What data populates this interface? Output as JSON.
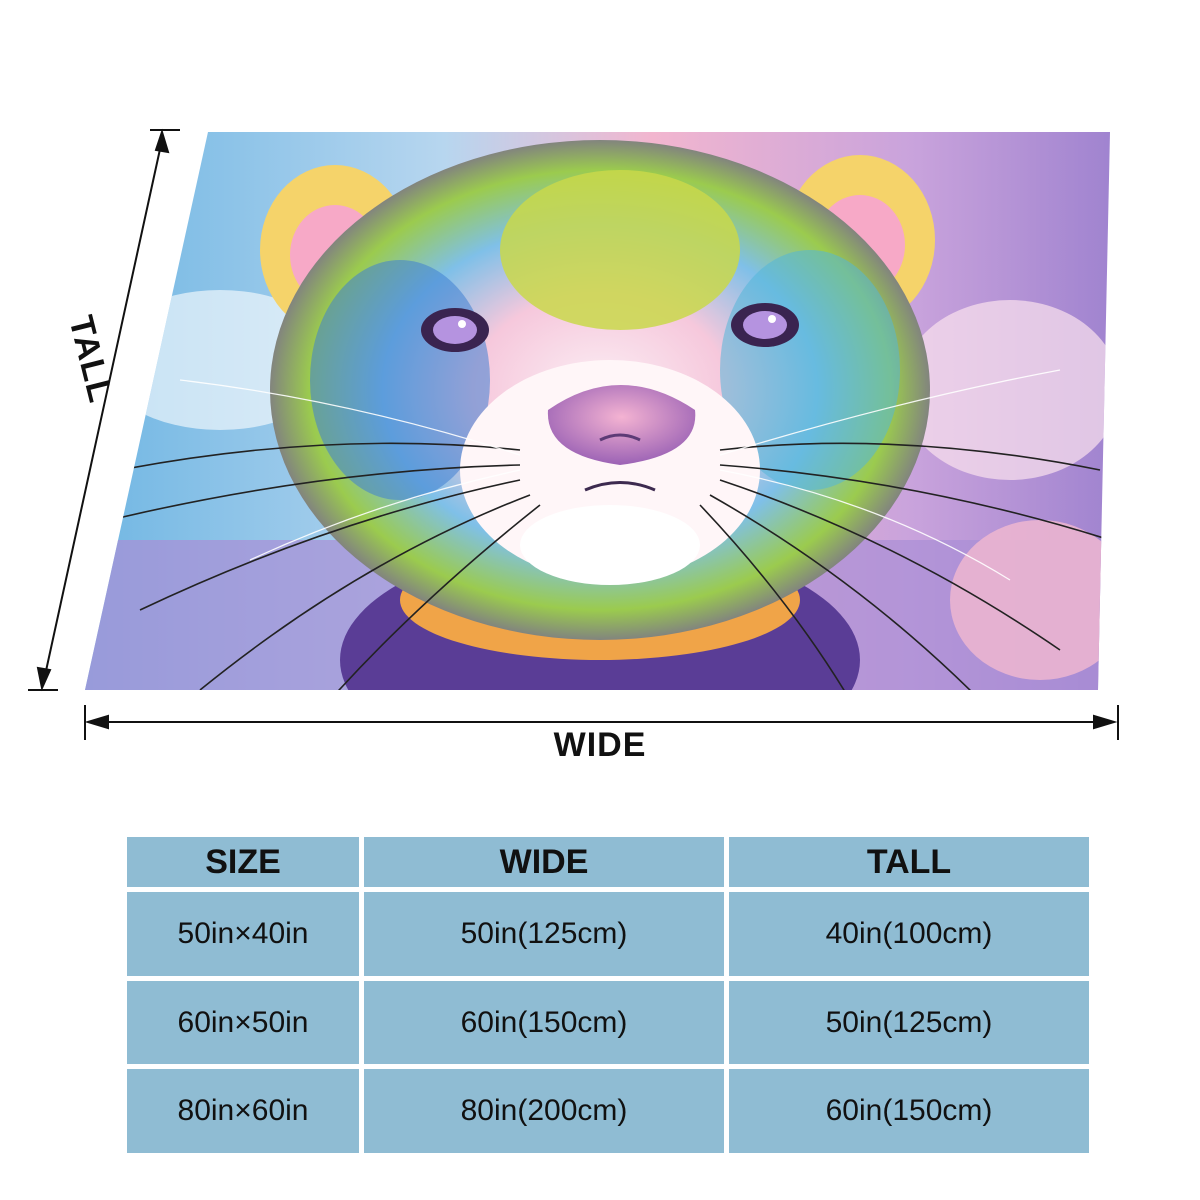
{
  "dimension_labels": {
    "tall": "TALL",
    "wide": "WIDE"
  },
  "size_table": {
    "headers": [
      "SIZE",
      "WIDE",
      "TALL"
    ],
    "rows": [
      [
        "50in×40in",
        "50in(125cm)",
        "40in(100cm)"
      ],
      [
        "60in×50in",
        "60in(150cm)",
        "50in(125cm)"
      ],
      [
        "80in×60in",
        "80in(200cm)",
        "60in(150cm)"
      ]
    ]
  },
  "colors": {
    "table_cell": "#8fbcd3",
    "text": "#111111"
  }
}
